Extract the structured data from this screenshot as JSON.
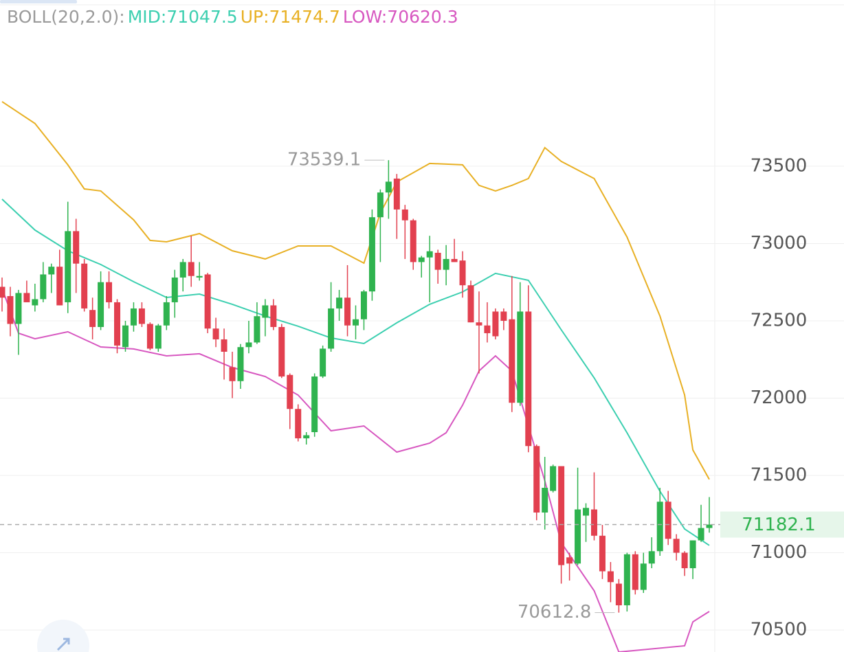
{
  "header": {
    "items": [
      {
        "text": "BOLL(20,2.0):",
        "color": "#9a9a9a"
      },
      {
        "text": "MID:71047.5",
        "color": "#3ccfb0"
      },
      {
        "text": "UP:71474.7",
        "color": "#e8b024"
      },
      {
        "text": "LOW:70620.3",
        "color": "#d757c0"
      }
    ]
  },
  "chart_data": {
    "type": "candlestick",
    "up_color": "#2fb34f",
    "down_color": "#e2404f",
    "ylim": [
      70358,
      74575
    ],
    "yticks": [
      70500,
      71000,
      71500,
      72000,
      72500,
      73000,
      73500
    ],
    "grid": true,
    "open": [
      72720,
      72660,
      72480,
      72680,
      72600,
      72640,
      72800,
      72850,
      72620,
      73080,
      72870,
      72570,
      72460,
      72750,
      72620,
      72330,
      72470,
      72580,
      72480,
      72320,
      72470,
      72620,
      72780,
      72880,
      72780,
      72800,
      72450,
      72380,
      72200,
      72110,
      72330,
      72360,
      72520,
      72600,
      72460,
      72150,
      71930,
      71740,
      71780,
      72140,
      72320,
      72580,
      72650,
      72470,
      72510,
      72690,
      73170,
      73330,
      73420,
      73220,
      73150,
      72880,
      72910,
      72940,
      72830,
      72900,
      72890,
      72730,
      72490,
      72470,
      72560,
      72560,
      72510,
      71970,
      72560,
      71690,
      71260,
      71400,
      71560,
      70970,
      70930,
      71240,
      71280,
      71110,
      70880,
      70800,
      70660,
      70990,
      70760,
      70930,
      71010,
      71330,
      71090,
      71000,
      70900,
      71080,
      71160
    ],
    "high": [
      72780,
      72720,
      72700,
      72760,
      72740,
      72880,
      72870,
      72960,
      73270,
      73160,
      72900,
      72650,
      72820,
      72820,
      72640,
      72500,
      72620,
      72620,
      72490,
      72480,
      72660,
      72830,
      72900,
      73050,
      72880,
      72810,
      72520,
      72450,
      72300,
      72350,
      72500,
      72620,
      72640,
      72640,
      72480,
      72160,
      71960,
      71780,
      72160,
      72340,
      72750,
      72700,
      72860,
      72600,
      72700,
      73220,
      73350,
      73539.1,
      73450,
      73250,
      73160,
      72920,
      73050,
      72960,
      72990,
      73030,
      72950,
      72760,
      72690,
      72620,
      72580,
      72580,
      72790,
      72750,
      72730,
      71700,
      71620,
      71570,
      71560,
      71000,
      71550,
      71320,
      71520,
      71180,
      70940,
      70830,
      71000,
      71010,
      71000,
      71100,
      71420,
      71400,
      71120,
      71010,
      71080,
      71310,
      71360
    ],
    "low": [
      72560,
      72400,
      72280,
      72620,
      72560,
      72620,
      72680,
      72600,
      72550,
      72680,
      72560,
      72380,
      72440,
      72580,
      72290,
      72300,
      72430,
      72460,
      72310,
      72300,
      72440,
      72520,
      72690,
      72720,
      72760,
      72420,
      72330,
      72120,
      72000,
      72060,
      72290,
      72350,
      72400,
      72440,
      72130,
      71800,
      71720,
      71700,
      71750,
      72130,
      72300,
      72500,
      72400,
      72380,
      72440,
      72630,
      72880,
      73160,
      73030,
      72900,
      72830,
      72780,
      72620,
      72740,
      72730,
      72880,
      72650,
      72490,
      72160,
      72360,
      72380,
      72440,
      71910,
      71950,
      71650,
      71210,
      71150,
      71390,
      70800,
      70820,
      70920,
      71070,
      71080,
      70830,
      70680,
      70612.8,
      70620,
      70730,
      70740,
      70900,
      70980,
      71050,
      70950,
      70850,
      70830,
      71070,
      71130
    ],
    "close": [
      72650,
      72480,
      72680,
      72620,
      72640,
      72800,
      72850,
      72600,
      73080,
      72870,
      72580,
      72460,
      72750,
      72620,
      72340,
      72470,
      72580,
      72480,
      72320,
      72470,
      72620,
      72780,
      72880,
      72790,
      72790,
      72450,
      72380,
      72300,
      72110,
      72330,
      72360,
      72530,
      72600,
      72460,
      72140,
      71930,
      71740,
      71760,
      72140,
      72320,
      72580,
      72650,
      72470,
      72510,
      72690,
      73170,
      73330,
      73400,
      73220,
      73150,
      72880,
      72910,
      72950,
      72830,
      72900,
      72880,
      72730,
      72490,
      72470,
      72420,
      72400,
      72500,
      71970,
      72560,
      71690,
      71260,
      71420,
      71560,
      70920,
      70930,
      71280,
      71290,
      71110,
      70880,
      70810,
      70660,
      70990,
      70760,
      70930,
      71010,
      71330,
      71090,
      71000,
      70900,
      71080,
      71160,
      71182.1
    ],
    "bands": [
      {
        "color": "#e8b024",
        "x": [
          0,
          4,
          8,
          10,
          12,
          16,
          18,
          20,
          24,
          28,
          32,
          36,
          40,
          44,
          46,
          48,
          52,
          56,
          58,
          60,
          62,
          64,
          66,
          68,
          72,
          76,
          80,
          83,
          84,
          86
        ],
        "values": [
          73918,
          73776,
          73509,
          73353,
          73340,
          73153,
          73020,
          73011,
          73064,
          72953,
          72900,
          72984,
          72984,
          72873,
          73198,
          73398,
          73518,
          73509,
          73376,
          73340,
          73376,
          73420,
          73620,
          73531,
          73420,
          73042,
          72531,
          72020,
          71665,
          71474.7
        ]
      },
      {
        "color": "#3ccfb0",
        "x": [
          0,
          4,
          8,
          12,
          16,
          20,
          24,
          28,
          32,
          36,
          40,
          44,
          48,
          52,
          56,
          60,
          64,
          68,
          72,
          76,
          80,
          83,
          86
        ],
        "values": [
          73287,
          73087,
          72953,
          72864,
          72753,
          72651,
          72673,
          72607,
          72531,
          72465,
          72389,
          72353,
          72487,
          72607,
          72687,
          72807,
          72762,
          72442,
          72131,
          71776,
          71398,
          71154,
          71047.5
        ]
      },
      {
        "color": "#d757c0",
        "x": [
          0,
          2,
          4,
          8,
          12,
          16,
          20,
          24,
          28,
          32,
          36,
          40,
          44,
          48,
          52,
          54,
          56,
          58,
          60,
          62,
          64,
          66,
          68,
          72,
          75,
          83,
          84,
          86
        ],
        "values": [
          72709,
          72420,
          72384,
          72429,
          72331,
          72318,
          72273,
          72287,
          72198,
          72140,
          72020,
          71789,
          71820,
          71651,
          71709,
          71776,
          71954,
          72176,
          72273,
          72176,
          71820,
          71465,
          71065,
          70754,
          70358,
          70398,
          70553,
          70620.3
        ]
      }
    ],
    "high_marker": 73539.1,
    "low_marker": 70612.8,
    "last_price": 71182.1,
    "last_price_color": "#2fb34f"
  }
}
